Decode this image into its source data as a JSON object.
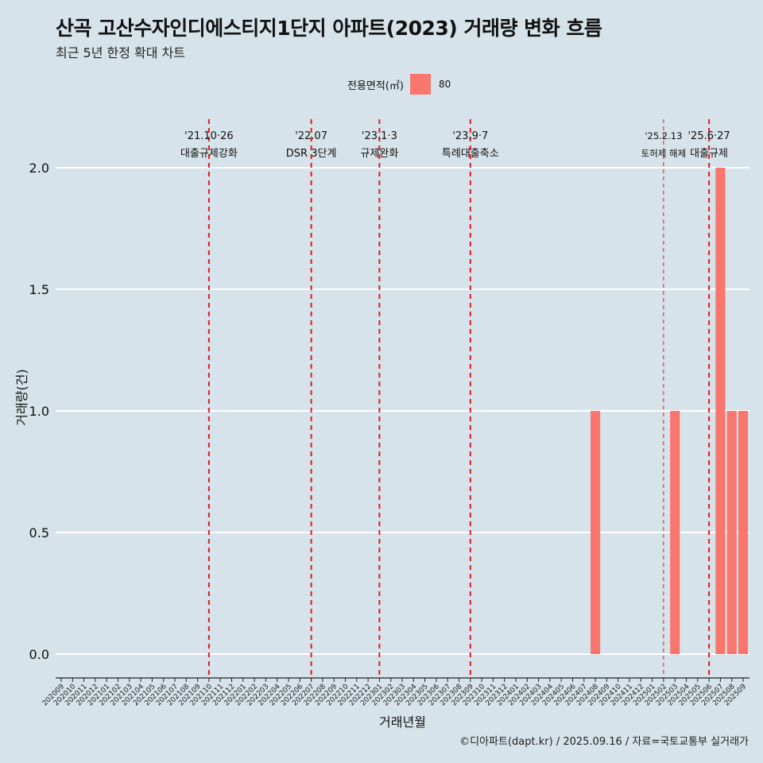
{
  "title": "산곡 고산수자인디에스티지1단지 아파트(2023) 거래량 변화 흐름",
  "subtitle": "최근 5년 한정 확대 차트",
  "legend": {
    "title": "전용면적(㎡)",
    "entries": [
      {
        "label": "80",
        "color": "#f8766d"
      }
    ]
  },
  "footer": "©디아파트(dapt.kr) / 2025.09.16 / 자료=국토교통부 실거래가",
  "chart_data": {
    "type": "bar",
    "xlabel": "거래년월",
    "ylabel": "거래량(건)",
    "ylim": [
      0,
      2.0
    ],
    "yticks": [
      "0.0",
      "0.5",
      "1.0",
      "1.5",
      "2.0"
    ],
    "grid": "horizontal",
    "legend_position": "top",
    "categories": [
      "202009",
      "202010",
      "202011",
      "202012",
      "202101",
      "202102",
      "202103",
      "202104",
      "202105",
      "202106",
      "202107",
      "202108",
      "202109",
      "202110",
      "202111",
      "202112",
      "202201",
      "202202",
      "202203",
      "202204",
      "202205",
      "202206",
      "202207",
      "202208",
      "202209",
      "202210",
      "202211",
      "202212",
      "202301",
      "202302",
      "202303",
      "202304",
      "202305",
      "202306",
      "202307",
      "202308",
      "202309",
      "202310",
      "202311",
      "202312",
      "202401",
      "202402",
      "202403",
      "202404",
      "202405",
      "202406",
      "202407",
      "202408",
      "202409",
      "202410",
      "202411",
      "202412",
      "202501",
      "202502",
      "202503",
      "202504",
      "202505",
      "202506",
      "202507",
      "202508",
      "202509"
    ],
    "series": [
      {
        "name": "80",
        "color": "#f8766d",
        "values": [
          0,
          0,
          0,
          0,
          0,
          0,
          0,
          0,
          0,
          0,
          0,
          0,
          0,
          0,
          0,
          0,
          0,
          0,
          0,
          0,
          0,
          0,
          0,
          0,
          0,
          0,
          0,
          0,
          0,
          0,
          0,
          0,
          0,
          0,
          0,
          0,
          0,
          0,
          0,
          0,
          0,
          0,
          0,
          0,
          0,
          0,
          0,
          1,
          0,
          0,
          0,
          0,
          0,
          0,
          1,
          0,
          0,
          0,
          2,
          1,
          1
        ]
      }
    ],
    "annotations": [
      {
        "category": "202110",
        "line1": "'21.10·26",
        "line2": "대출규제강화",
        "style": "dashed",
        "color": "#e41a1c"
      },
      {
        "category": "202207",
        "line1": "'22.07",
        "line2": "DSR 3단계",
        "style": "dashed",
        "color": "#e41a1c"
      },
      {
        "category": "202301",
        "line1": "'23.1·3",
        "line2": "규제완화",
        "style": "dashed",
        "color": "#e41a1c"
      },
      {
        "category": "202309",
        "line1": "'23.9·7",
        "line2": "특례대출축소",
        "style": "dashed",
        "color": "#e41a1c"
      },
      {
        "category": "202502",
        "line1": "'25.2.13",
        "line2": "토허제 해제",
        "style": "dashed-thin",
        "color": "#e41a1c"
      },
      {
        "category": "202506",
        "line1": "'25.6·27",
        "line2": "대출규제",
        "style": "dashed",
        "color": "#e41a1c"
      }
    ]
  }
}
